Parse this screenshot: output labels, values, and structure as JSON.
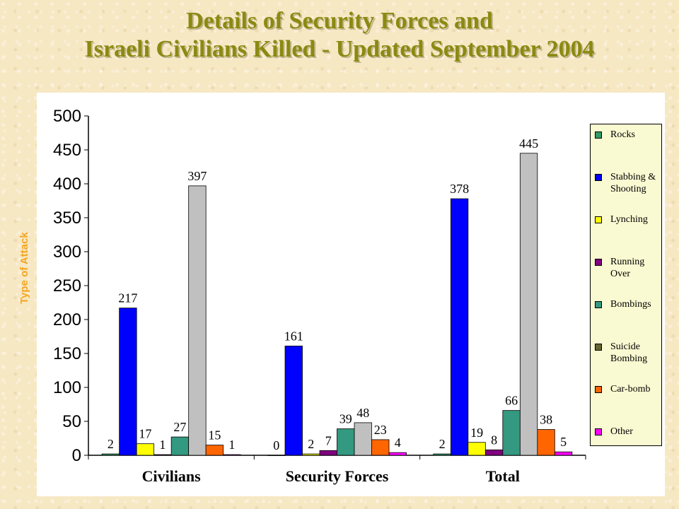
{
  "title": {
    "line1": "Details of Security Forces and",
    "line2": "Israeli Civilians Killed - Updated September 2004"
  },
  "side_label": "Type of Attack",
  "colors": {
    "Rocks": "#339966",
    "Stabbing & Shooting": "#0000ff",
    "Lynching": "#ffff00",
    "Running Over": "#800080",
    "Bombings": "#339980",
    "Suicide Bombing": "#666633",
    "Suicide Bombing gray bar": "#c0c0c0",
    "Car-bomb": "#ff6600",
    "Other": "#ff00ff"
  },
  "chart_data": {
    "type": "bar",
    "categories": [
      "Civilians",
      "Security Forces",
      "Total"
    ],
    "ylim": [
      0,
      500
    ],
    "yticks": [
      0,
      50,
      100,
      150,
      200,
      250,
      300,
      350,
      400,
      450,
      500
    ],
    "grid": false,
    "legend_position": "right",
    "series": [
      {
        "name": "Rocks",
        "color": "#339966",
        "values": [
          2,
          0,
          2
        ],
        "labels": [
          "2",
          "0",
          "2"
        ]
      },
      {
        "name": "Stabbing & Shooting",
        "color": "#0000ff",
        "values": [
          217,
          161,
          378
        ],
        "labels": [
          "217",
          "161",
          "378"
        ]
      },
      {
        "name": "Lynching",
        "color": "#ffff00",
        "values": [
          17,
          2,
          19
        ],
        "labels": [
          "17",
          "2",
          "19"
        ]
      },
      {
        "name": "Running Over",
        "color": "#800080",
        "values": [
          1,
          7,
          8
        ],
        "labels": [
          "1",
          "7",
          "8"
        ]
      },
      {
        "name": "Bombings",
        "color": "#339980",
        "values": [
          27,
          39,
          66
        ],
        "labels": [
          "27",
          "39",
          "66"
        ]
      },
      {
        "name": "Suicide Bombing",
        "color": "#c0c0c0",
        "values": [
          397,
          48,
          445
        ],
        "labels": [
          "397",
          "48",
          "445"
        ]
      },
      {
        "name": "Car-bomb",
        "color": "#ff6600",
        "values": [
          15,
          23,
          38
        ],
        "labels": [
          "15",
          "23",
          "38"
        ]
      },
      {
        "name": "Other",
        "color": "#ff00ff",
        "values": [
          1,
          4,
          5
        ],
        "labels": [
          "1",
          "4",
          "5"
        ]
      }
    ]
  },
  "legend": {
    "items": [
      {
        "label": "Rocks",
        "color": "#339966"
      },
      {
        "label": "Stabbing & Shooting",
        "color": "#0000ff"
      },
      {
        "label": "Lynching",
        "color": "#ffff00"
      },
      {
        "label": "Running Over",
        "color": "#800080"
      },
      {
        "label": "Bombings",
        "color": "#339980"
      },
      {
        "label": "Suicide Bombing",
        "color": "#666633"
      },
      {
        "label": "Car-bomb",
        "color": "#ff6600"
      },
      {
        "label": "Other",
        "color": "#ff00ff"
      }
    ]
  }
}
